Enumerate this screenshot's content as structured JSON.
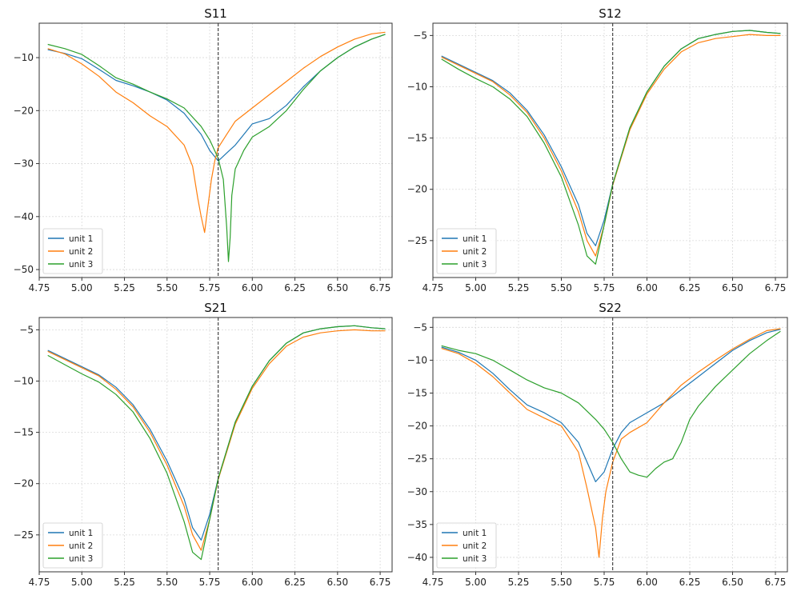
{
  "chart_data": [
    {
      "type": "line",
      "title": "S11",
      "xlabel": "",
      "ylabel": "",
      "xlim": [
        4.75,
        6.82
      ],
      "ylim": [
        -51.5,
        -3.5
      ],
      "xticks": [
        "4.75",
        "5.00",
        "5.25",
        "5.50",
        "5.75",
        "6.00",
        "6.25",
        "6.50",
        "6.75"
      ],
      "yticks": [
        "-50",
        "-40",
        "-30",
        "-20",
        "-10"
      ],
      "grid": true,
      "legend": "bottom-left",
      "vline": 5.8,
      "series": [
        {
          "name": "unit 1",
          "color": "#1f77b4",
          "x": [
            4.8,
            4.9,
            5.0,
            5.1,
            5.2,
            5.3,
            5.4,
            5.5,
            5.6,
            5.65,
            5.7,
            5.75,
            5.8,
            5.85,
            5.9,
            5.95,
            6.0,
            6.1,
            6.2,
            6.3,
            6.4,
            6.5,
            6.6,
            6.7,
            6.78
          ],
          "values": [
            -8.5,
            -9.2,
            -10.2,
            -12.2,
            -14.3,
            -15.3,
            -16.5,
            -18.0,
            -20.5,
            -22.5,
            -24.5,
            -27.5,
            -29.5,
            -28.0,
            -26.5,
            -24.5,
            -22.5,
            -21.5,
            -19.0,
            -15.5,
            -12.5,
            -10.0,
            -8.0,
            -6.5,
            -5.6
          ]
        },
        {
          "name": "unit 2",
          "color": "#ff7f0e",
          "x": [
            4.8,
            4.9,
            5.0,
            5.1,
            5.2,
            5.3,
            5.4,
            5.5,
            5.6,
            5.65,
            5.68,
            5.7,
            5.72,
            5.74,
            5.76,
            5.78,
            5.8,
            5.85,
            5.9,
            6.0,
            6.1,
            6.2,
            6.3,
            6.4,
            6.5,
            6.6,
            6.7,
            6.78
          ],
          "values": [
            -8.3,
            -9.3,
            -11.2,
            -13.5,
            -16.5,
            -18.5,
            -21.0,
            -23.0,
            -26.5,
            -30.5,
            -36.5,
            -40.0,
            -43.0,
            -38.0,
            -33.0,
            -29.5,
            -27.0,
            -24.5,
            -22.0,
            -19.5,
            -17.0,
            -14.5,
            -12.0,
            -9.8,
            -8.0,
            -6.5,
            -5.5,
            -5.2
          ]
        },
        {
          "name": "unit 3",
          "color": "#2ca02c",
          "x": [
            4.8,
            4.9,
            5.0,
            5.1,
            5.2,
            5.3,
            5.4,
            5.5,
            5.6,
            5.7,
            5.75,
            5.8,
            5.83,
            5.85,
            5.86,
            5.87,
            5.88,
            5.9,
            5.95,
            6.0,
            6.1,
            6.2,
            6.3,
            6.4,
            6.5,
            6.6,
            6.7,
            6.78
          ],
          "values": [
            -7.5,
            -8.3,
            -9.4,
            -11.5,
            -13.8,
            -15.0,
            -16.5,
            -17.8,
            -19.5,
            -23.0,
            -25.5,
            -29.0,
            -33.0,
            -42.0,
            -48.5,
            -44.0,
            -36.0,
            -31.0,
            -27.5,
            -25.0,
            -23.0,
            -20.0,
            -16.0,
            -12.5,
            -10.0,
            -8.0,
            -6.5,
            -5.6
          ]
        }
      ]
    },
    {
      "type": "line",
      "title": "S12",
      "xlabel": "",
      "ylabel": "",
      "xlim": [
        4.75,
        6.82
      ],
      "ylim": [
        -28.6,
        -3.8
      ],
      "xticks": [
        "4.75",
        "5.00",
        "5.25",
        "5.50",
        "5.75",
        "6.00",
        "6.25",
        "6.50",
        "6.75"
      ],
      "yticks": [
        "-25",
        "-20",
        "-15",
        "-10",
        "-5"
      ],
      "grid": true,
      "legend": "bottom-left",
      "vline": 5.8,
      "series": [
        {
          "name": "unit 1",
          "color": "#1f77b4",
          "x": [
            4.8,
            4.9,
            5.0,
            5.1,
            5.2,
            5.3,
            5.4,
            5.5,
            5.6,
            5.65,
            5.7,
            5.75,
            5.8,
            5.9,
            6.0,
            6.1,
            6.2,
            6.3,
            6.4,
            6.5,
            6.6,
            6.7,
            6.78
          ],
          "values": [
            -7.0,
            -7.8,
            -8.6,
            -9.4,
            -10.6,
            -12.3,
            -14.7,
            -17.8,
            -21.5,
            -24.3,
            -25.5,
            -23.0,
            -19.5,
            -14.0,
            -10.5,
            -8.0,
            -6.3,
            -5.3,
            -4.9,
            -4.6,
            -4.5,
            -4.7,
            -4.8
          ]
        },
        {
          "name": "unit 2",
          "color": "#ff7f0e",
          "x": [
            4.8,
            4.9,
            5.0,
            5.1,
            5.2,
            5.3,
            5.4,
            5.5,
            5.6,
            5.65,
            5.7,
            5.75,
            5.8,
            5.9,
            6.0,
            6.1,
            6.2,
            6.3,
            6.4,
            6.5,
            6.6,
            6.7,
            6.78
          ],
          "values": [
            -7.1,
            -7.9,
            -8.7,
            -9.5,
            -10.8,
            -12.5,
            -15.0,
            -18.2,
            -22.2,
            -25.0,
            -26.5,
            -23.5,
            -19.6,
            -14.2,
            -10.7,
            -8.3,
            -6.6,
            -5.7,
            -5.3,
            -5.1,
            -4.9,
            -5.0,
            -5.0
          ]
        },
        {
          "name": "unit 3",
          "color": "#2ca02c",
          "x": [
            4.8,
            4.9,
            5.0,
            5.1,
            5.2,
            5.3,
            5.4,
            5.5,
            5.6,
            5.65,
            5.7,
            5.75,
            5.8,
            5.9,
            6.0,
            6.1,
            6.2,
            6.3,
            6.4,
            6.5,
            6.6,
            6.7,
            6.78
          ],
          "values": [
            -7.3,
            -8.3,
            -9.2,
            -10.0,
            -11.2,
            -12.9,
            -15.5,
            -18.8,
            -23.5,
            -26.5,
            -27.3,
            -23.5,
            -19.5,
            -14.0,
            -10.5,
            -8.0,
            -6.3,
            -5.3,
            -4.9,
            -4.6,
            -4.5,
            -4.7,
            -4.8
          ]
        }
      ]
    },
    {
      "type": "line",
      "title": "S21",
      "xlabel": "",
      "ylabel": "",
      "xlim": [
        4.75,
        6.82
      ],
      "ylim": [
        -28.6,
        -3.8
      ],
      "xticks": [
        "4.75",
        "5.00",
        "5.25",
        "5.50",
        "5.75",
        "6.00",
        "6.25",
        "6.50",
        "6.75"
      ],
      "yticks": [
        "-25",
        "-20",
        "-15",
        "-10",
        "-5"
      ],
      "grid": true,
      "legend": "bottom-left",
      "vline": 5.8,
      "series": [
        {
          "name": "unit 1",
          "color": "#1f77b4",
          "x": [
            4.8,
            4.9,
            5.0,
            5.1,
            5.2,
            5.3,
            5.4,
            5.5,
            5.6,
            5.65,
            5.7,
            5.75,
            5.8,
            5.9,
            6.0,
            6.1,
            6.2,
            6.3,
            6.4,
            6.5,
            6.6,
            6.7,
            6.78
          ],
          "values": [
            -7.0,
            -7.8,
            -8.6,
            -9.4,
            -10.6,
            -12.3,
            -14.7,
            -17.8,
            -21.5,
            -24.3,
            -25.5,
            -23.0,
            -19.5,
            -14.0,
            -10.5,
            -8.0,
            -6.3,
            -5.3,
            -4.9,
            -4.7,
            -4.6,
            -4.8,
            -4.9
          ]
        },
        {
          "name": "unit 2",
          "color": "#ff7f0e",
          "x": [
            4.8,
            4.9,
            5.0,
            5.1,
            5.2,
            5.3,
            5.4,
            5.5,
            5.6,
            5.65,
            5.7,
            5.75,
            5.8,
            5.9,
            6.0,
            6.1,
            6.2,
            6.3,
            6.4,
            6.5,
            6.6,
            6.7,
            6.78
          ],
          "values": [
            -7.1,
            -7.9,
            -8.7,
            -9.5,
            -10.8,
            -12.5,
            -15.0,
            -18.2,
            -22.2,
            -25.0,
            -26.5,
            -23.5,
            -19.6,
            -14.2,
            -10.7,
            -8.3,
            -6.6,
            -5.7,
            -5.3,
            -5.1,
            -5.0,
            -5.1,
            -5.1
          ]
        },
        {
          "name": "unit 3",
          "color": "#2ca02c",
          "x": [
            4.8,
            4.9,
            5.0,
            5.1,
            5.2,
            5.3,
            5.4,
            5.5,
            5.6,
            5.65,
            5.7,
            5.75,
            5.8,
            5.9,
            6.0,
            6.1,
            6.2,
            6.3,
            6.4,
            6.5,
            6.6,
            6.7,
            6.78
          ],
          "values": [
            -7.5,
            -8.4,
            -9.3,
            -10.1,
            -11.3,
            -13.0,
            -15.6,
            -19.0,
            -23.7,
            -26.7,
            -27.4,
            -23.5,
            -19.5,
            -14.0,
            -10.5,
            -8.0,
            -6.3,
            -5.3,
            -4.9,
            -4.7,
            -4.6,
            -4.8,
            -4.9
          ]
        }
      ]
    },
    {
      "type": "line",
      "title": "S22",
      "xlabel": "",
      "ylabel": "",
      "xlim": [
        4.75,
        6.82
      ],
      "ylim": [
        -42.2,
        -3.5
      ],
      "xticks": [
        "4.75",
        "5.00",
        "5.25",
        "5.50",
        "5.75",
        "6.00",
        "6.25",
        "6.50",
        "6.75"
      ],
      "yticks": [
        "-40",
        "-35",
        "-30",
        "-25",
        "-20",
        "-15",
        "-10",
        "-5"
      ],
      "grid": true,
      "legend": "bottom-left",
      "vline": 5.8,
      "series": [
        {
          "name": "unit 1",
          "color": "#1f77b4",
          "x": [
            4.8,
            4.9,
            5.0,
            5.1,
            5.2,
            5.3,
            5.4,
            5.5,
            5.6,
            5.65,
            5.7,
            5.75,
            5.8,
            5.85,
            5.9,
            6.0,
            6.1,
            6.2,
            6.3,
            6.4,
            6.5,
            6.6,
            6.7,
            6.78
          ],
          "values": [
            -8.0,
            -8.8,
            -10.0,
            -12.0,
            -14.5,
            -16.8,
            -18.0,
            -19.5,
            -22.5,
            -25.5,
            -28.5,
            -27.0,
            -23.5,
            -21.0,
            -19.5,
            -18.0,
            -16.5,
            -14.5,
            -12.5,
            -10.5,
            -8.5,
            -7.0,
            -5.8,
            -5.3
          ]
        },
        {
          "name": "unit 2",
          "color": "#ff7f0e",
          "x": [
            4.8,
            4.9,
            5.0,
            5.1,
            5.2,
            5.3,
            5.4,
            5.5,
            5.6,
            5.65,
            5.7,
            5.72,
            5.74,
            5.76,
            5.8,
            5.85,
            5.9,
            6.0,
            6.1,
            6.2,
            6.3,
            6.4,
            6.5,
            6.6,
            6.7,
            6.78
          ],
          "values": [
            -8.2,
            -9.0,
            -10.5,
            -12.5,
            -15.0,
            -17.5,
            -18.8,
            -20.0,
            -24.0,
            -29.5,
            -35.5,
            -40.0,
            -34.0,
            -30.0,
            -25.5,
            -22.0,
            -21.0,
            -19.5,
            -16.5,
            -13.8,
            -11.8,
            -10.0,
            -8.3,
            -6.8,
            -5.5,
            -5.2
          ]
        },
        {
          "name": "unit 3",
          "color": "#2ca02c",
          "x": [
            4.8,
            4.9,
            5.0,
            5.1,
            5.2,
            5.3,
            5.4,
            5.5,
            5.6,
            5.7,
            5.75,
            5.8,
            5.85,
            5.9,
            5.95,
            6.0,
            6.05,
            6.1,
            6.15,
            6.2,
            6.25,
            6.3,
            6.4,
            6.5,
            6.6,
            6.7,
            6.78
          ],
          "values": [
            -7.8,
            -8.5,
            -9.0,
            -10.0,
            -11.5,
            -13.0,
            -14.2,
            -15.0,
            -16.5,
            -19.0,
            -20.5,
            -22.5,
            -25.0,
            -27.0,
            -27.5,
            -27.8,
            -26.5,
            -25.5,
            -25.0,
            -22.5,
            -19.0,
            -17.0,
            -14.0,
            -11.5,
            -9.0,
            -7.0,
            -5.6
          ]
        }
      ]
    }
  ]
}
